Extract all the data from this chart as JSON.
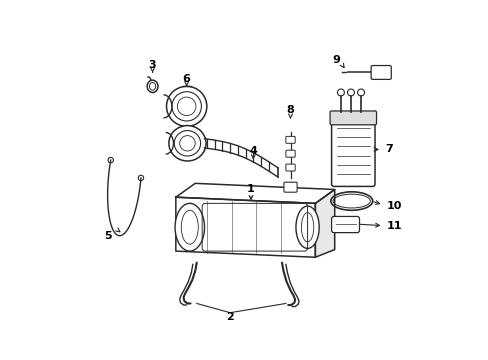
{
  "bg_color": "#ffffff",
  "lc": "#2a2a2a",
  "figsize": [
    4.89,
    3.6
  ],
  "dpi": 100,
  "xlim": [
    0,
    489
  ],
  "ylim": [
    360,
    0
  ]
}
